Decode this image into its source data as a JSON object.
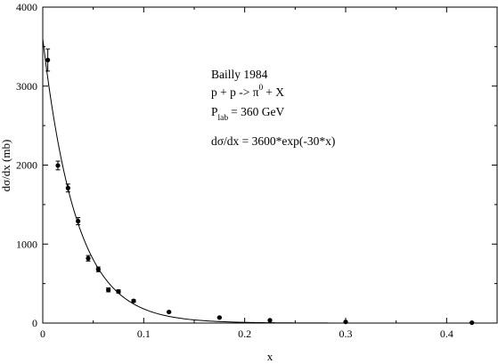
{
  "chart_data": {
    "type": "scatter",
    "xlabel": "x",
    "ylabel": "dσ/dx (mb)",
    "xlim": [
      0,
      0.45
    ],
    "ylim": [
      0,
      4000
    ],
    "x_ticks": [
      "0",
      "0.1",
      "0.2",
      "0.3",
      "0.4"
    ],
    "y_ticks": [
      "0",
      "1000",
      "2000",
      "3000",
      "4000"
    ],
    "grid": false,
    "series": [
      {
        "marker": "circle",
        "points": [
          {
            "x": 0.005,
            "y": 3330,
            "err": 140
          },
          {
            "x": 0.015,
            "y": 1995,
            "err": 55
          },
          {
            "x": 0.025,
            "y": 1710,
            "err": 50
          },
          {
            "x": 0.035,
            "y": 1290,
            "err": 45
          },
          {
            "x": 0.045,
            "y": 820,
            "err": 35
          },
          {
            "x": 0.055,
            "y": 680,
            "err": 30
          },
          {
            "x": 0.065,
            "y": 420,
            "err": 25
          },
          {
            "x": 0.075,
            "y": 400,
            "err": 20
          },
          {
            "x": 0.09,
            "y": 280,
            "err": 15
          },
          {
            "x": 0.125,
            "y": 140,
            "err": 10
          },
          {
            "x": 0.175,
            "y": 70,
            "err": 8
          },
          {
            "x": 0.225,
            "y": 35,
            "err": 5
          },
          {
            "x": 0.3,
            "y": 15,
            "err": 3
          },
          {
            "x": 0.425,
            "y": 5,
            "err": 2
          }
        ]
      }
    ],
    "fit": {
      "amplitude": 3600,
      "rate": 30
    },
    "annotations": {
      "line1": "Bailly 1984",
      "line2_main": "p + p -> π",
      "line2_sup": "0",
      "line2_tail": "+ X",
      "line3_main": "P",
      "line3_sub": "lab",
      "line3_tail": "= 360 GeV",
      "line4": "dσ/dx = 3600*exp(-30*x)"
    }
  }
}
